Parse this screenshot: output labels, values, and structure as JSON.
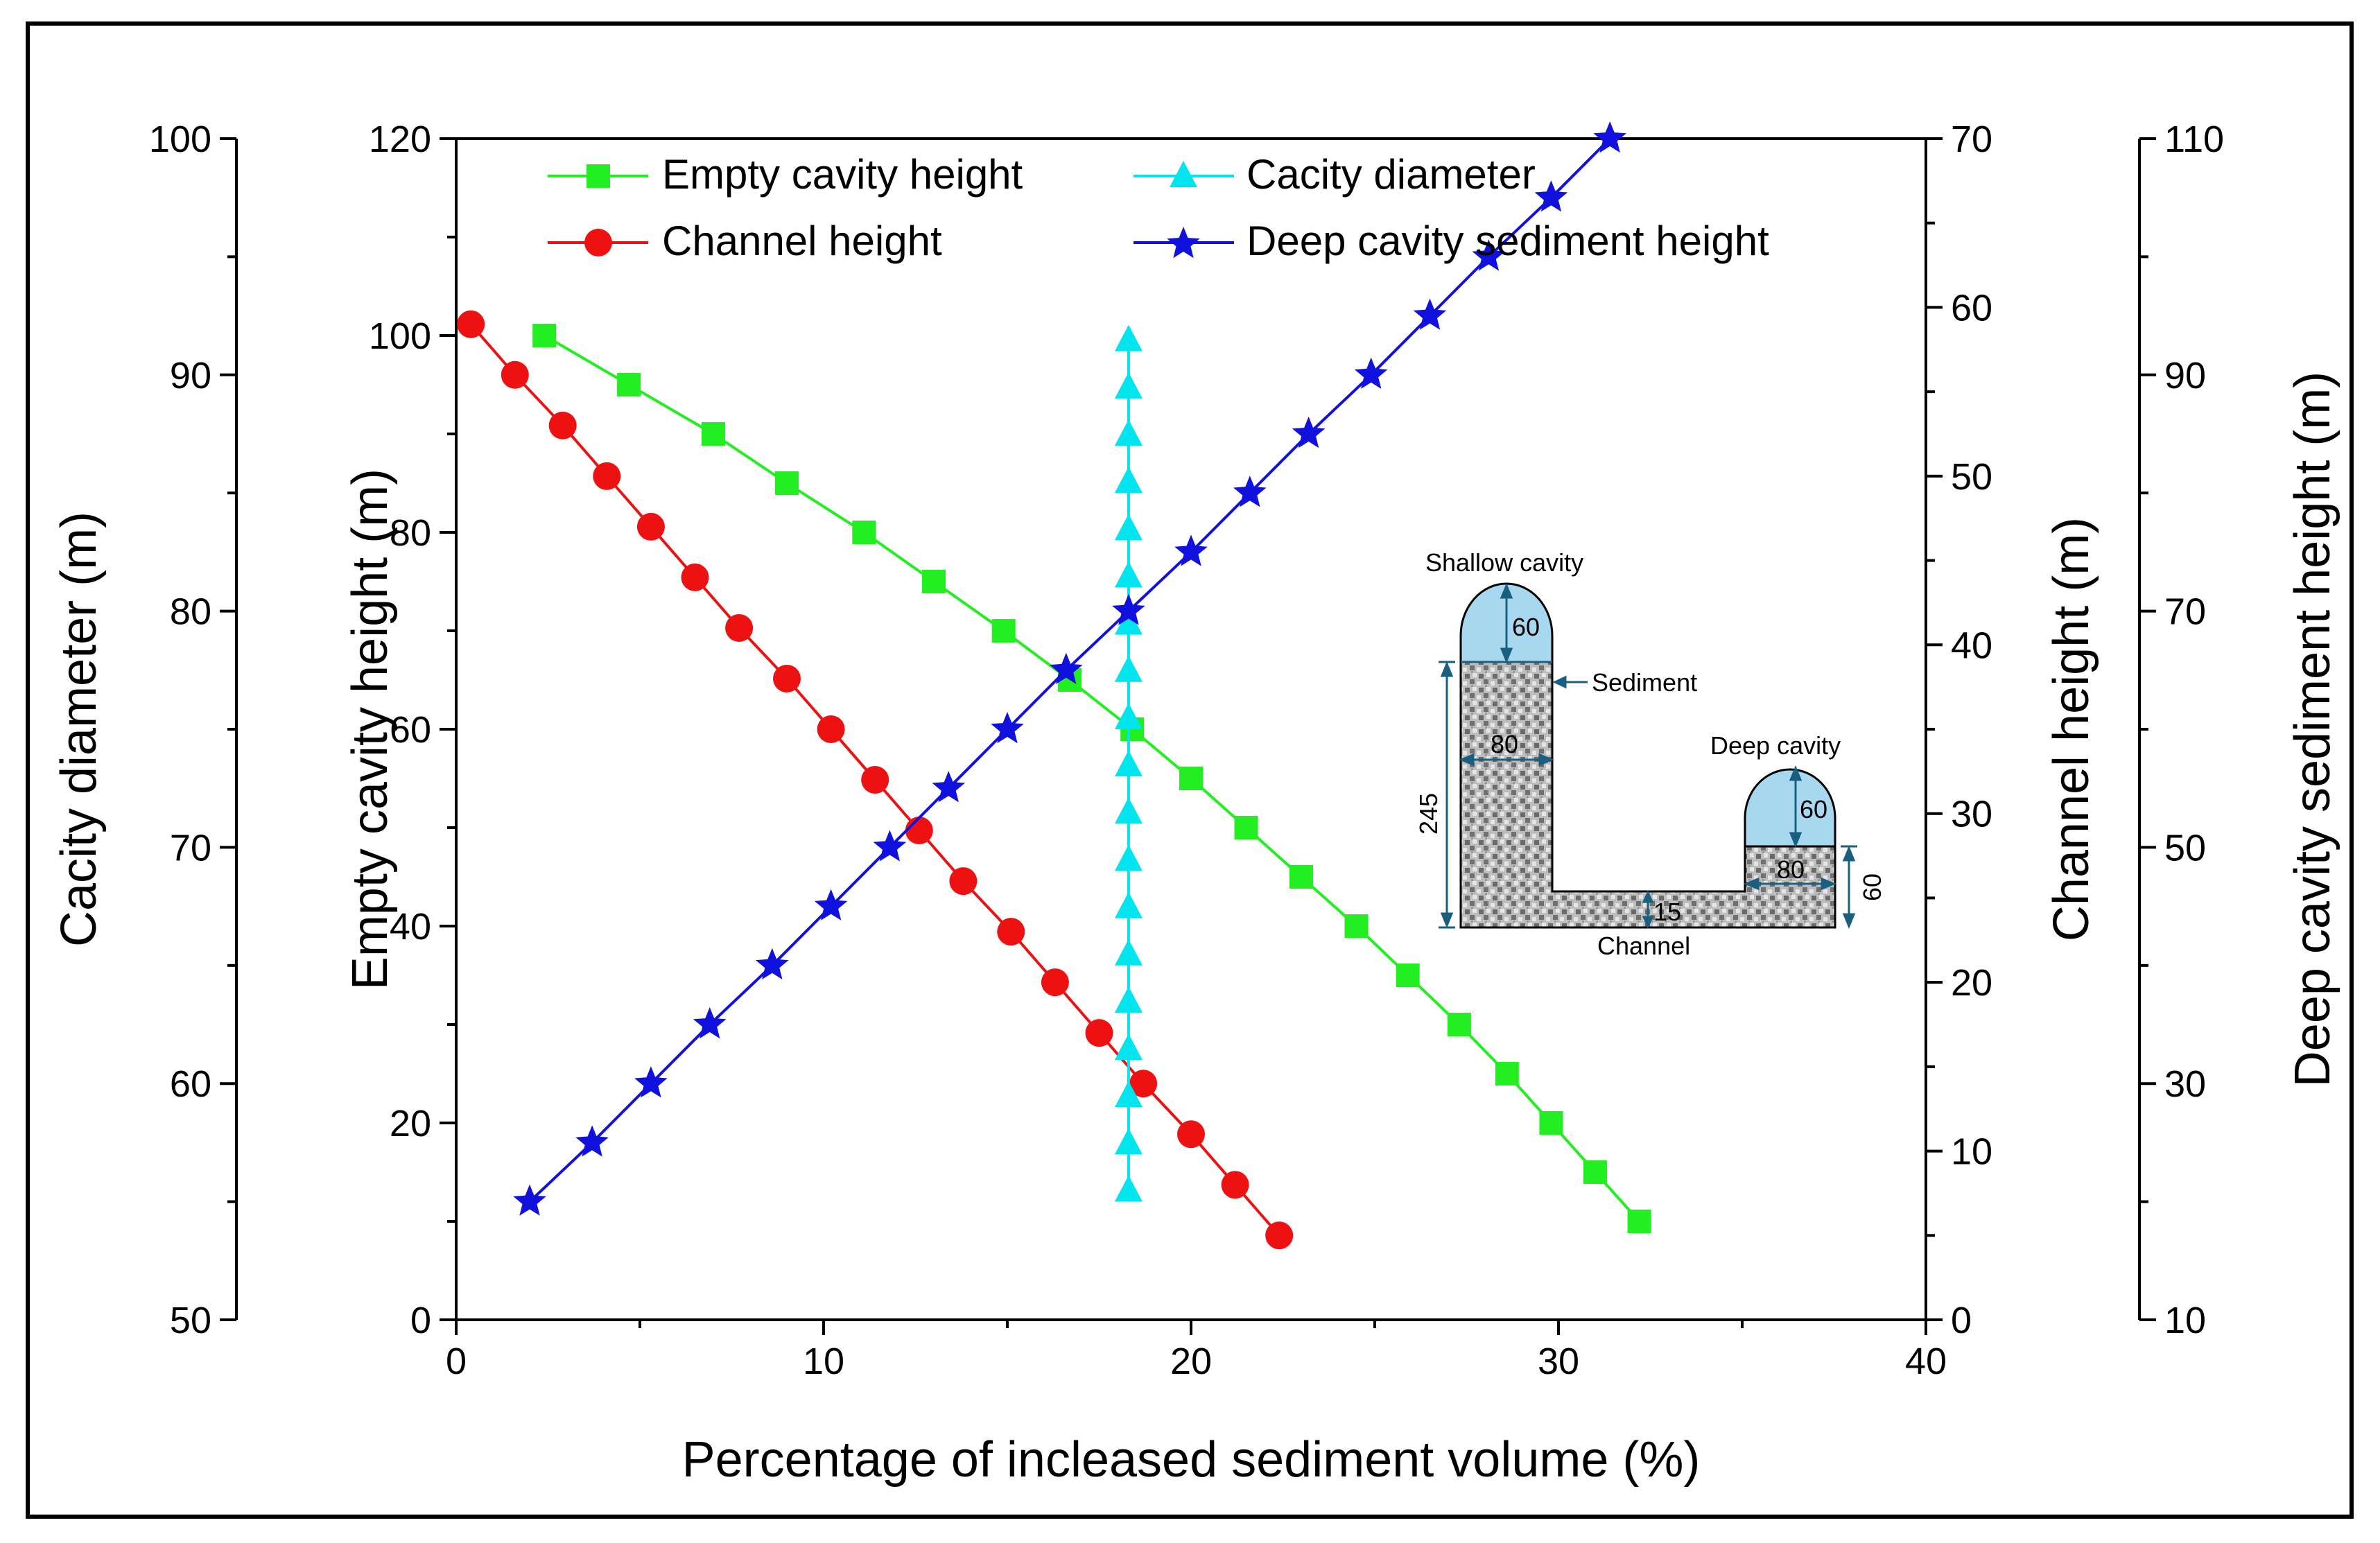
{
  "chart_data": {
    "type": "line",
    "x": {
      "label": "Percentage of incleased sediment volume (%)",
      "range": [
        0,
        40
      ],
      "ticks": [
        0,
        10,
        20,
        30,
        40
      ]
    },
    "axes": {
      "left_inner": {
        "label": "Empty cavity height (m)",
        "range": [
          0,
          120
        ],
        "ticks": [
          0,
          20,
          40,
          60,
          80,
          100,
          120
        ],
        "minor_step": 10
      },
      "left_outer": {
        "label": "Cacity diameter (m)",
        "range": [
          50,
          100
        ],
        "ticks": [
          50,
          60,
          70,
          80,
          90,
          100
        ],
        "minor_step": 5
      },
      "right_inner": {
        "label": "Channel height (m)",
        "range": [
          0,
          70
        ],
        "ticks": [
          0,
          10,
          20,
          30,
          40,
          50,
          60,
          70
        ],
        "minor_step": 5
      },
      "right_outer": {
        "label": "Deep cavity sediment height (m)",
        "range": [
          10,
          110
        ],
        "ticks": [
          10,
          30,
          50,
          70,
          90,
          110
        ],
        "minor_step": 10
      }
    },
    "series": [
      {
        "name": "Empty cavity height",
        "axis": "left_inner",
        "color": "#22ee22",
        "marker": "square",
        "x": [
          2.4,
          4.7,
          7.0,
          9.0,
          11.1,
          13.0,
          14.9,
          16.7,
          18.4,
          20.0,
          21.5,
          23.0,
          24.5,
          25.9,
          27.3,
          28.6,
          29.8,
          31.0,
          32.2
        ],
        "y": [
          100,
          95,
          90,
          85,
          80,
          75,
          70,
          65,
          60,
          55,
          50,
          45,
          40,
          35,
          30,
          25,
          20,
          15,
          10
        ]
      },
      {
        "name": "Channel height",
        "axis": "right_inner",
        "color": "#ee1111",
        "marker": "circle",
        "x": [
          0.4,
          1.6,
          2.9,
          4.1,
          5.3,
          6.5,
          7.7,
          9.0,
          10.2,
          11.4,
          12.6,
          13.8,
          15.1,
          16.3,
          17.5,
          18.7,
          20.0,
          21.2,
          22.4
        ],
        "y": [
          59,
          56,
          53,
          50,
          47,
          44,
          41,
          38,
          35,
          32,
          29,
          26,
          23,
          20,
          17,
          14,
          11,
          8,
          5
        ]
      },
      {
        "name": "Cacity diameter",
        "axis": "left_outer",
        "color": "#00e5ee",
        "marker": "triangle",
        "x": [
          18.3,
          18.3,
          18.3,
          18.3,
          18.3,
          18.3,
          18.3,
          18.3,
          18.3,
          18.3,
          18.3,
          18.3,
          18.3,
          18.3,
          18.3,
          18.3,
          18.3,
          18.3,
          18.3
        ],
        "y": [
          91.5,
          89.5,
          87.5,
          85.5,
          83.5,
          81.5,
          79.5,
          77.5,
          75.5,
          73.5,
          71.5,
          69.5,
          67.5,
          65.5,
          63.5,
          61.5,
          59.5,
          57.5,
          55.5
        ]
      },
      {
        "name": "Deep cavity sediment height",
        "axis": "right_outer",
        "color": "#1111dd",
        "marker": "star",
        "x": [
          2.0,
          3.7,
          5.3,
          6.9,
          8.6,
          10.2,
          11.8,
          13.4,
          15.0,
          16.6,
          18.3,
          20.0,
          21.6,
          23.2,
          24.9,
          26.5,
          28.1,
          29.8,
          31.4
        ],
        "y": [
          20,
          25,
          30,
          35,
          40,
          45,
          50,
          55,
          60,
          65,
          70,
          75,
          80,
          85,
          90,
          95,
          100,
          105,
          110
        ]
      }
    ],
    "legend": {
      "placement": "top",
      "order": [
        "Empty cavity height",
        "Cacity diameter",
        "Channel height",
        "Deep cavity sediment height"
      ]
    },
    "inset": {
      "shallow_cavity_label": "Shallow cavity",
      "sediment_label": "Sediment",
      "deep_cavity_label": "Deep cavity",
      "channel_label": "Channel",
      "dims": {
        "shallow_dome": "60",
        "shallow_width": "80",
        "shallow_height": "245",
        "deep_dome": "60",
        "deep_width": "80",
        "deep_height": "60",
        "channel_height": "15"
      }
    }
  }
}
